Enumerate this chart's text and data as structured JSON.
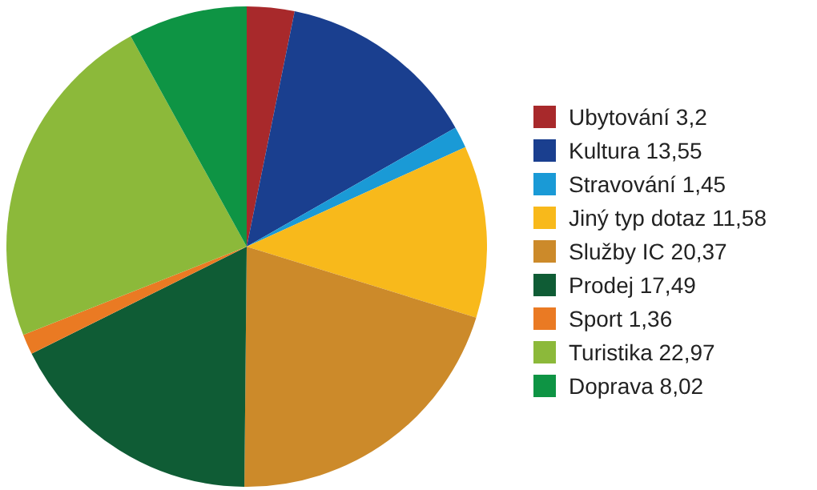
{
  "chart_data": {
    "type": "pie",
    "categories": [
      "Ubytování",
      "Kultura",
      "Stravování",
      "Jiný typ dotaz",
      "Služby IC",
      "Prodej",
      "Sport",
      "Turistika",
      "Doprava"
    ],
    "values": [
      3.2,
      13.55,
      1.45,
      11.58,
      20.37,
      17.49,
      1.36,
      22.97,
      8.02
    ],
    "value_labels": [
      "3,2",
      "13,55",
      "1,45",
      "11,58",
      "20,37",
      "17,49",
      "1,36",
      "22,97",
      "8,02"
    ],
    "colors": [
      "#a8292b",
      "#1a3f8f",
      "#1a9ad6",
      "#f8b91b",
      "#cc8a2a",
      "#0f5c35",
      "#ea7a23",
      "#8cb93a",
      "#0e9444"
    ],
    "legend": "right"
  }
}
